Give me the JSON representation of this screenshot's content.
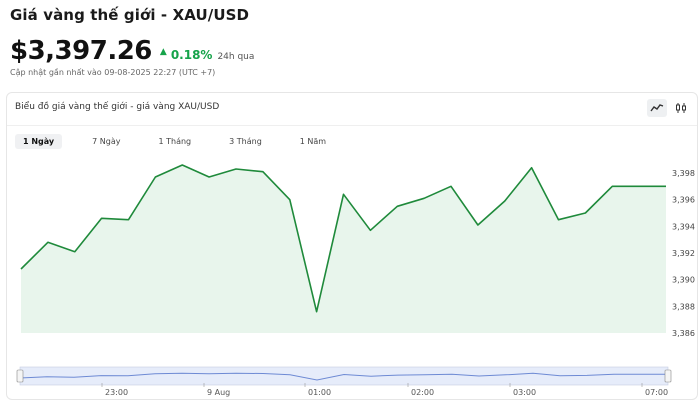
{
  "header": {
    "title": "Giá vàng thế giới - XAU/USD",
    "price": "$3,397.26",
    "change_pct": "0.18%",
    "change_period": "24h qua",
    "updated": "Cập nhật gần nhất vào 09-08-2025 22:27 (UTC +7)"
  },
  "chart_card": {
    "title": "Biểu đồ giá vàng thế giới - giá vàng XAU/USD",
    "icons": [
      "line-chart-icon",
      "candlestick-icon"
    ],
    "tabs": [
      {
        "label": "1 Ngày",
        "active": true
      },
      {
        "label": "7 Ngày",
        "active": false
      },
      {
        "label": "1 Tháng",
        "active": false
      },
      {
        "label": "3 Tháng",
        "active": false
      },
      {
        "label": "1 Năm",
        "active": false
      }
    ]
  },
  "colors": {
    "line": "#1f8a3b",
    "fill": "#e8f5ec",
    "up": "#16a34a"
  },
  "chart_data": {
    "type": "area",
    "ylim": [
      3386,
      3399.5
    ],
    "y_ticks": [
      "3,398",
      "3,396",
      "3,394",
      "3,392",
      "3,390",
      "3,388",
      "3,386"
    ],
    "y_tick_values": [
      3398,
      3396,
      3394,
      3392,
      3390,
      3388,
      3386
    ],
    "values": [
      3390.8,
      3392.8,
      3392.1,
      3394.6,
      3394.5,
      3397.7,
      3398.6,
      3397.7,
      3398.3,
      3398.1,
      3396.0,
      3387.6,
      3396.4,
      3393.7,
      3395.5,
      3396.1,
      3397.0,
      3394.1,
      3395.9,
      3398.4,
      3394.5,
      3395.0,
      3397.0,
      3397.0,
      3397.0
    ],
    "navigator_ticks": [
      "23:00",
      "9 Aug",
      "01:00",
      "02:00",
      "03:00",
      "07:00"
    ]
  }
}
